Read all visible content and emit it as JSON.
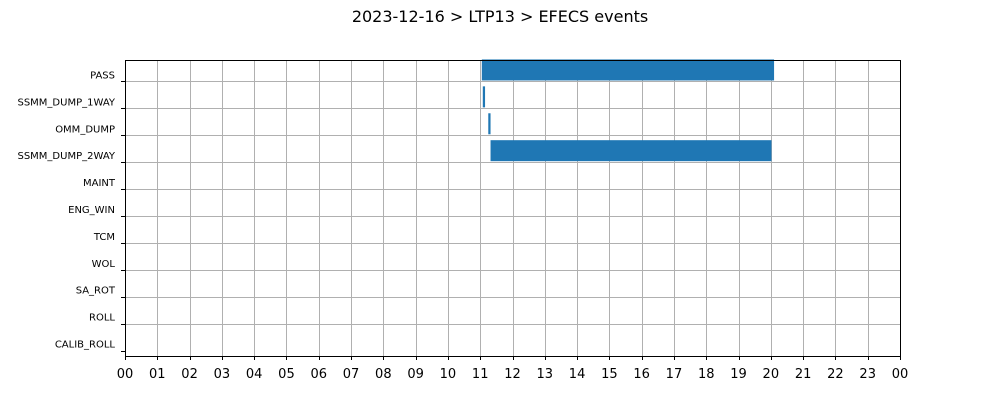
{
  "chart_data": {
    "type": "bar",
    "orientation": "horizontal",
    "title": "2023-12-16 > LTP13 > EFECS events",
    "xlabel": "",
    "ylabel": "",
    "x_unit": "hour of day",
    "xlim": [
      0,
      24
    ],
    "x_tick_labels": [
      "00",
      "01",
      "02",
      "03",
      "04",
      "05",
      "06",
      "07",
      "08",
      "09",
      "10",
      "11",
      "12",
      "13",
      "14",
      "15",
      "16",
      "17",
      "18",
      "19",
      "20",
      "21",
      "22",
      "23",
      "00"
    ],
    "categories": [
      "PASS",
      "SSMM_DUMP_1WAY",
      "OMM_DUMP",
      "SSMM_DUMP_2WAY",
      "MAINT",
      "ENG_WIN",
      "TCM",
      "WOL",
      "SA_ROT",
      "ROLL",
      "CALIB_ROLL"
    ],
    "grid": true,
    "legend": "none",
    "bar_color": "#1f77b4",
    "events": [
      {
        "category": "PASS",
        "start": 11.05,
        "end": 20.1
      },
      {
        "category": "SSMM_DUMP_1WAY",
        "start": 11.08,
        "end": 11.15
      },
      {
        "category": "OMM_DUMP",
        "start": 11.25,
        "end": 11.32
      },
      {
        "category": "SSMM_DUMP_2WAY",
        "start": 11.32,
        "end": 20.02
      }
    ]
  }
}
